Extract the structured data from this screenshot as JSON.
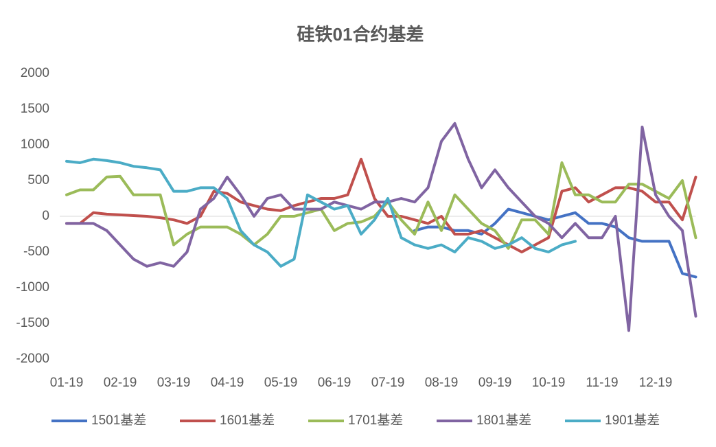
{
  "chart_data": {
    "type": "line",
    "title": "硅铁01合约基差",
    "categories": [
      "01-19",
      null,
      null,
      null,
      "02-19",
      null,
      null,
      null,
      "03-19",
      null,
      null,
      null,
      "04-19",
      null,
      null,
      null,
      "05-19",
      null,
      null,
      null,
      "06-19",
      null,
      null,
      null,
      "07-19",
      null,
      null,
      null,
      "08-19",
      null,
      null,
      null,
      "09-19",
      null,
      null,
      null,
      "10-19",
      null,
      null,
      null,
      "11-19",
      null,
      null,
      null,
      "12-19",
      null,
      null,
      null
    ],
    "series": [
      {
        "name": "1501基差",
        "color": "#4472c4",
        "values": [
          null,
          null,
          null,
          null,
          null,
          null,
          null,
          null,
          null,
          null,
          null,
          null,
          null,
          null,
          null,
          null,
          null,
          null,
          null,
          null,
          null,
          null,
          null,
          null,
          null,
          null,
          -200,
          -150,
          -150,
          -200,
          -200,
          -250,
          -100,
          100,
          50,
          0,
          -50,
          0,
          50,
          -100,
          -100,
          -150,
          -300,
          -350,
          -350,
          -350,
          -800,
          -850
        ]
      },
      {
        "name": "1601基差",
        "color": "#c0504d",
        "values": [
          -100,
          -100,
          50,
          30,
          20,
          10,
          0,
          -20,
          -50,
          -100,
          0,
          350,
          320,
          200,
          150,
          100,
          80,
          150,
          200,
          250,
          250,
          300,
          800,
          250,
          0,
          0,
          -50,
          -100,
          0,
          -250,
          -250,
          -200,
          -300,
          -400,
          -500,
          -400,
          -300,
          350,
          400,
          200,
          300,
          400,
          400,
          350,
          200,
          200,
          -50,
          550
        ]
      },
      {
        "name": "1701基差",
        "color": "#9bbb59",
        "values": [
          300,
          370,
          370,
          550,
          560,
          300,
          300,
          300,
          -400,
          -250,
          -150,
          -150,
          -150,
          -250,
          -400,
          -250,
          0,
          0,
          50,
          100,
          -200,
          -100,
          -80,
          0,
          200,
          -50,
          -250,
          200,
          -200,
          300,
          100,
          -100,
          -200,
          -450,
          -50,
          -50,
          -250,
          750,
          300,
          300,
          200,
          200,
          450,
          450,
          350,
          250,
          500,
          -300
        ]
      },
      {
        "name": "1801基差",
        "color": "#8064a2",
        "values": [
          -100,
          -100,
          -100,
          -200,
          -400,
          -600,
          -700,
          -650,
          -700,
          -500,
          100,
          250,
          550,
          300,
          0,
          250,
          300,
          100,
          100,
          100,
          200,
          150,
          100,
          200,
          200,
          250,
          200,
          400,
          1050,
          1300,
          800,
          400,
          650,
          400,
          200,
          0,
          -100,
          -300,
          -100,
          -300,
          -300,
          0,
          -1600,
          1250,
          300,
          0,
          -200,
          -1400
        ]
      },
      {
        "name": "1901基差",
        "color": "#4bacc6",
        "values": [
          770,
          750,
          800,
          780,
          750,
          700,
          680,
          650,
          350,
          350,
          400,
          400,
          250,
          -200,
          -400,
          -500,
          -700,
          -600,
          300,
          200,
          100,
          150,
          -250,
          -50,
          250,
          -300,
          -400,
          -450,
          -400,
          -500,
          -300,
          -350,
          -450,
          -400,
          -300,
          -450,
          -500,
          -400,
          -350,
          null,
          null,
          null,
          null,
          null,
          null,
          null,
          null,
          null
        ]
      }
    ],
    "ylim": [
      -2000,
      2000
    ],
    "yticks": [
      -2000,
      -1500,
      -1000,
      -500,
      0,
      500,
      1000,
      1500,
      2000
    ],
    "grid": false
  }
}
